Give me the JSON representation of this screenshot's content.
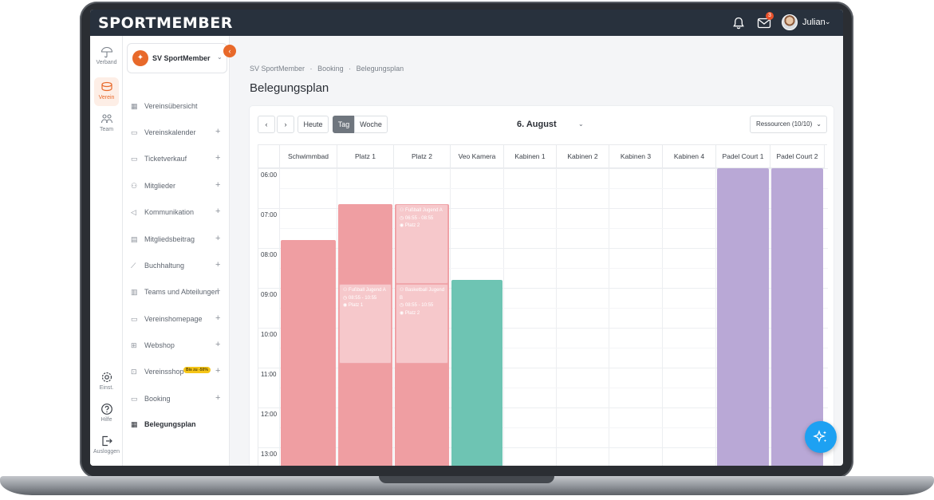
{
  "brand": {
    "logo_text": "SPORTMEMBER",
    "accent": "#e8692a"
  },
  "topbar": {
    "notifications_icon": "bell-icon",
    "mail_icon": "mail-icon",
    "mail_badge": "3",
    "user_name": "Julian"
  },
  "rail": [
    {
      "label": "Verband",
      "icon": "umbrella-icon"
    },
    {
      "label": "Verein",
      "icon": "club-icon",
      "active": true
    },
    {
      "label": "Team",
      "icon": "team-icon"
    },
    {
      "label": "Einst.",
      "icon": "gear-icon"
    },
    {
      "label": "Hilfe",
      "icon": "help-icon"
    },
    {
      "label": "Ausloggen",
      "icon": "logout-icon"
    }
  ],
  "sidebar": {
    "club_name": "SV SportMember",
    "items": [
      {
        "label": "Vereinsübersicht",
        "plus": ""
      },
      {
        "label": "Vereinskalender",
        "plus": "+"
      },
      {
        "label": "Ticketverkauf",
        "plus": "+"
      },
      {
        "label": "Mitglieder",
        "plus": "+"
      },
      {
        "label": "Kommunikation",
        "plus": "+"
      },
      {
        "label": "Mitgliedsbeitrag",
        "plus": "+"
      },
      {
        "label": "Buchhaltung",
        "plus": "+"
      },
      {
        "label": "Teams und Abteilungen",
        "plus": "+"
      },
      {
        "label": "Vereinshomepage",
        "plus": "+"
      },
      {
        "label": "Webshop",
        "plus": "+"
      },
      {
        "label": "Vereinsshop",
        "plus": "+",
        "badge": "Bis zu -50%"
      },
      {
        "label": "Booking",
        "plus": "+"
      },
      {
        "label": "Belegungsplan",
        "plus": "",
        "active": true
      }
    ]
  },
  "breadcrumb": [
    "SV SportMember",
    "·",
    "Booking",
    "·",
    "Belegungsplan"
  ],
  "page_title": "Belegungsplan",
  "toolbar": {
    "prev": "‹",
    "next": "›",
    "today": "Heute",
    "view_day": "Tag",
    "view_week": "Woche",
    "date": "6. August",
    "resources": "Ressourcen (10/10)"
  },
  "calendar": {
    "columns": [
      "Schwimmbad",
      "Platz 1",
      "Platz 2",
      "Veo Kamera",
      "Kabinen 1",
      "Kabinen 2",
      "Kabinen 3",
      "Kabinen 4",
      "Padel Court 1",
      "Padel Court 2"
    ],
    "hours": [
      "06:00",
      "07:00",
      "08:00",
      "09:00",
      "10:00",
      "11:00",
      "12:00",
      "13:00"
    ],
    "events": [
      {
        "column": 0,
        "start": 7.8,
        "end": 15,
        "color": "red"
      },
      {
        "column": 1,
        "start": 6.9,
        "end": 15,
        "color": "red"
      },
      {
        "column": 2,
        "start": 6.9,
        "end": 15,
        "color": "red"
      },
      {
        "column": 3,
        "start": 8.8,
        "end": 15,
        "color": "teal"
      },
      {
        "column": 8,
        "start": 6.0,
        "end": 15,
        "color": "purple"
      },
      {
        "column": 9,
        "start": 6.0,
        "end": 15,
        "color": "purple"
      }
    ],
    "bookings": [
      {
        "column": 2,
        "start": 6.9,
        "end": 8.9,
        "title": "Fußball Jugend A",
        "time": "06:55 - 08:55",
        "place": "Platz 2"
      },
      {
        "column": 1,
        "start": 8.9,
        "end": 10.9,
        "title": "Fußball Jugend A",
        "time": "08:55 - 10:55",
        "place": "Platz 1"
      },
      {
        "column": 2,
        "start": 8.9,
        "end": 10.9,
        "title": "Basketball Jugend B",
        "time": "08:55 - 10:55",
        "place": "Platz 2"
      }
    ]
  },
  "ai_button_icon": "sparkle-icon"
}
